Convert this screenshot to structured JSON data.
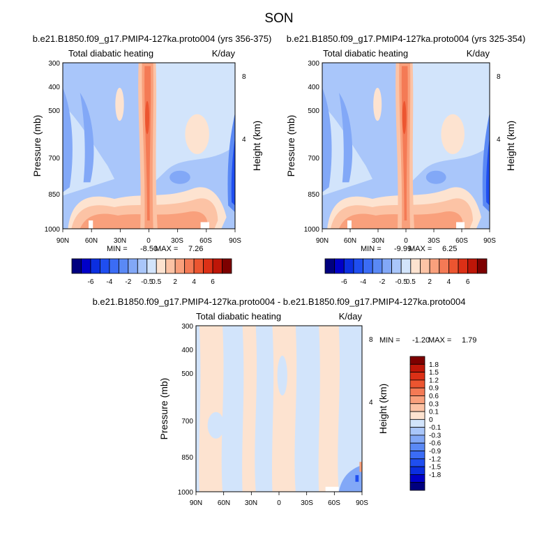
{
  "figure": {
    "title": "SON",
    "diff_title": "b.e21.B1850.f09_g17.PMIP4-127ka.proto004 - b.e21.B1850.f09_g17.PMIP4-127ka.proto004"
  },
  "colors": {
    "full_palette": [
      "#00007f",
      "#0000c8",
      "#0b2ee0",
      "#1f4ef0",
      "#3b6cf5",
      "#5a89f5",
      "#82a8f7",
      "#a9c6fa",
      "#d2e4fb",
      "#fde3d0",
      "#fcc3a5",
      "#f9a07c",
      "#f47a55",
      "#ec5530",
      "#dc3016",
      "#be1608",
      "#7d0000"
    ],
    "diff_palette": [
      "#00007f",
      "#0000c8",
      "#0b2ee0",
      "#1f4ef0",
      "#3b6cf5",
      "#5a89f5",
      "#82a8f7",
      "#a9c6fa",
      "#d2e4fb",
      "#fde3d0",
      "#fcc3a5",
      "#f9a07c",
      "#f47a55",
      "#ec5530",
      "#dc3016",
      "#be1608",
      "#7d0000"
    ]
  },
  "chart_data": [
    {
      "type": "heatmap",
      "title": "b.e21.B1850.f09_g17.PMIP4-127ka.proto004 (yrs 356-375)",
      "left_string": "Total diabatic heating",
      "right_string": "K/day",
      "xlabel": "",
      "ylabel": "Pressure (mb)",
      "ylabel_right": "Height (km)",
      "x_ticks": [
        "90N",
        "60N",
        "30N",
        "0",
        "30S",
        "60S",
        "90S"
      ],
      "y_ticks": [
        "300",
        "400",
        "500",
        "700",
        "850",
        "1000"
      ],
      "y_ticks_right": [
        "8",
        "4"
      ],
      "levels": [
        "-6",
        "-4",
        "-2",
        "-0.5",
        "0.5",
        "2",
        "4",
        "6"
      ],
      "min_label": "MIN = ",
      "min_value": "-8.50",
      "max_label": "MAX = ",
      "max_value": "7.26",
      "variant": "a"
    },
    {
      "type": "heatmap",
      "title": "b.e21.B1850.f09_g17.PMIP4-127ka.proto004 (yrs 325-354)",
      "left_string": "Total diabatic heating",
      "right_string": "K/day",
      "xlabel": "",
      "ylabel": "Pressure (mb)",
      "ylabel_right": "Height (km)",
      "x_ticks": [
        "90N",
        "60N",
        "30N",
        "0",
        "30S",
        "60S",
        "90S"
      ],
      "y_ticks": [
        "300",
        "400",
        "500",
        "700",
        "850",
        "1000"
      ],
      "y_ticks_right": [
        "8",
        "4"
      ],
      "levels": [
        "-6",
        "-4",
        "-2",
        "-0.5",
        "0.5",
        "2",
        "4",
        "6"
      ],
      "min_label": "MIN = ",
      "min_value": "-9.99",
      "max_label": "MAX = ",
      "max_value": "6.25",
      "variant": "b"
    },
    {
      "type": "heatmap",
      "title": "",
      "left_string": "Total diabatic heating",
      "right_string": "K/day",
      "xlabel": "",
      "ylabel": "Pressure (mb)",
      "ylabel_right": "Height (km)",
      "x_ticks": [
        "90N",
        "60N",
        "30N",
        "0",
        "30S",
        "60S",
        "90S"
      ],
      "y_ticks": [
        "300",
        "400",
        "500",
        "700",
        "850",
        "1000"
      ],
      "y_ticks_right": [
        "8",
        "4"
      ],
      "levels": [
        "1.8",
        "1.5",
        "1.2",
        "0.9",
        "0.6",
        "0.3",
        "0.1",
        "0",
        "-0.1",
        "-0.3",
        "-0.6",
        "-0.9",
        "-1.2",
        "-1.5",
        "-1.8"
      ],
      "min_label": "MIN = ",
      "min_value": "-1.20",
      "max_label": "MAX = ",
      "max_value": "1.79",
      "variant": "diff"
    }
  ]
}
